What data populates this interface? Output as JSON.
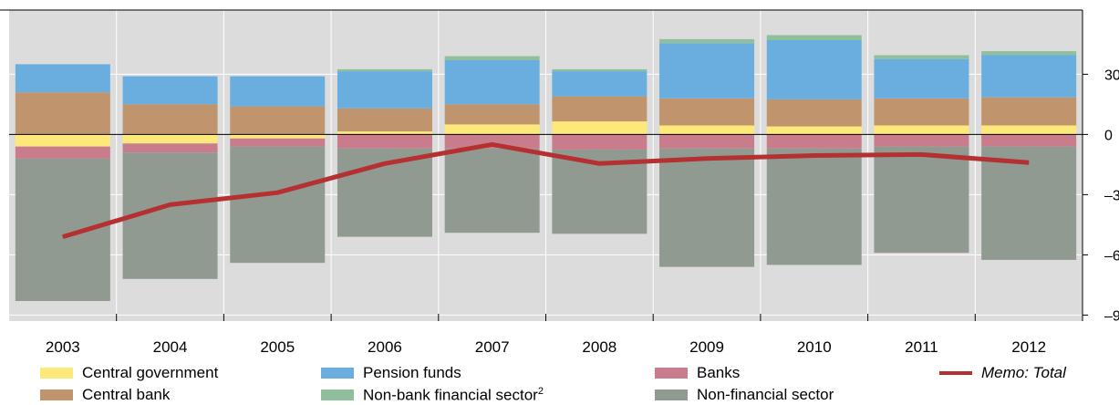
{
  "chart_data": {
    "type": "bar",
    "stacked": true,
    "categories": [
      "2003",
      "2004",
      "2005",
      "2006",
      "2007",
      "2008",
      "2009",
      "2010",
      "2011",
      "2012"
    ],
    "y_ticks": [
      30,
      0,
      -30,
      -60,
      -90
    ],
    "y_tick_labels": [
      "30",
      "0",
      "–30",
      "–60",
      "–90"
    ],
    "ylim": [
      -93,
      62
    ],
    "grid": true,
    "legend_position": "bottom",
    "series": [
      {
        "name": "Central government",
        "color": "#fde97a",
        "values": [
          -6,
          -4.5,
          -2,
          1.5,
          5,
          6.5,
          4.5,
          4,
          4.5,
          4.5
        ]
      },
      {
        "name": "Central bank",
        "color": "#c0956e",
        "values": [
          21,
          15,
          14,
          11.5,
          10,
          12.5,
          13.5,
          13.5,
          13.5,
          14
        ]
      },
      {
        "name": "Pension funds",
        "color": "#6aaee0",
        "values": [
          14,
          14,
          15,
          18.5,
          22,
          12.5,
          27.5,
          29.5,
          19.5,
          21
        ]
      },
      {
        "name": "Non-bank financial sector",
        "label_main": "Non-bank financial sector",
        "label_sup": "2",
        "color": "#8fbf9c",
        "values": [
          0,
          0,
          0,
          1,
          2,
          1,
          2,
          2.5,
          2,
          2
        ]
      },
      {
        "name": "Banks",
        "color": "#c97c8c",
        "values": [
          -6,
          -4.5,
          -4,
          -7,
          -7,
          -7.5,
          -7,
          -7,
          -6,
          -6
        ]
      },
      {
        "name": "Non-financial sector",
        "color": "#919a91",
        "values": [
          -71,
          -63,
          -58,
          -44,
          -42,
          -42,
          -59,
          -58,
          -53,
          -56.5
        ]
      }
    ],
    "line_series": {
      "name": "Memo: Total",
      "color": "#b53030",
      "values": [
        -51,
        -35,
        -29,
        -14.5,
        -5,
        -14.5,
        -12,
        -10.5,
        -10,
        -14
      ]
    }
  }
}
